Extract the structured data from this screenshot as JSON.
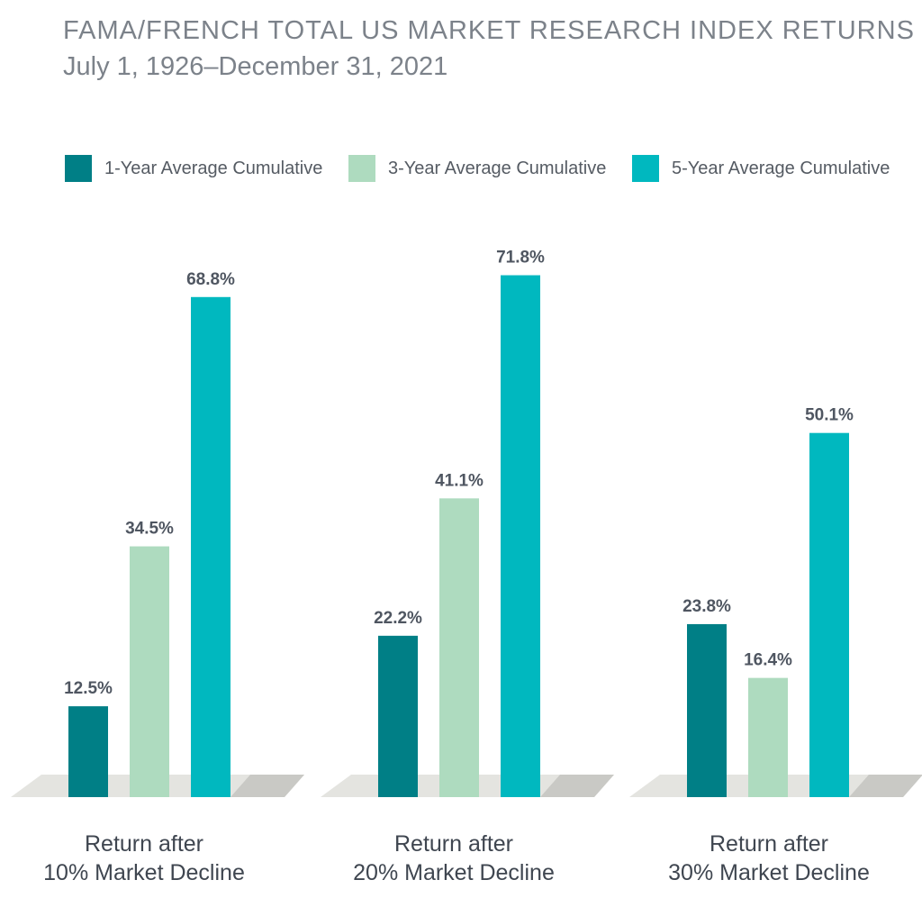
{
  "title": "FAMA/FRENCH TOTAL US MARKET RESEARCH INDEX RETURNS",
  "subtitle": "July 1, 1926–December 31, 2021",
  "legend": [
    {
      "label": "1-Year Average Cumulative",
      "color": "#007f86"
    },
    {
      "label": "3-Year Average Cumulative",
      "color": "#aedbbf"
    },
    {
      "label": "5-Year Average Cumulative",
      "color": "#00b8bf"
    }
  ],
  "chart_data": {
    "type": "bar",
    "title": "FAMA/FRENCH TOTAL US MARKET RESEARCH INDEX RETURNS",
    "subtitle": "July 1, 1926–December 31, 2021",
    "categories": [
      [
        "Return after",
        "10% Market Decline"
      ],
      [
        "Return after",
        "20% Market Decline"
      ],
      [
        "Return after",
        "30% Market Decline"
      ]
    ],
    "series": [
      {
        "name": "1-Year Average Cumulative",
        "color": "#007f86",
        "values": [
          12.5,
          22.2,
          23.8
        ],
        "labels": [
          "12.5%",
          "22.2%",
          "23.8%"
        ]
      },
      {
        "name": "3-Year Average Cumulative",
        "color": "#aedbbf",
        "values": [
          34.5,
          41.1,
          16.4
        ],
        "labels": [
          "34.5%",
          "41.1%",
          "16.4%"
        ]
      },
      {
        "name": "5-Year Average Cumulative",
        "color": "#00b8bf",
        "values": [
          68.8,
          71.8,
          50.1
        ],
        "labels": [
          "68.8%",
          "71.8%",
          "50.1%"
        ]
      }
    ],
    "ylim": [
      0,
      80
    ],
    "grid": false,
    "legend_position": "top"
  }
}
